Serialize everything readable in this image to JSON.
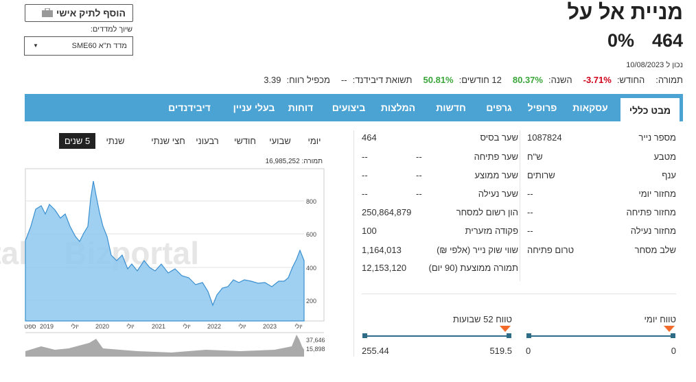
{
  "header": {
    "title": "מניית אל על",
    "price": "464",
    "change": "0%",
    "date_label": "נכון ל 10/08/2023",
    "stats_title": "תמורה:",
    "stats": [
      {
        "label": "החודש:",
        "value": "-3.71%",
        "tone": "neg"
      },
      {
        "label": "השנה:",
        "value": "80.37%",
        "tone": "pos"
      },
      {
        "label": "12 חודשים:",
        "value": "50.81%",
        "tone": "pos"
      },
      {
        "label": "תשואת דיבידנד:",
        "value": "--",
        "tone": "plain"
      },
      {
        "label": "מכפיל רווח:",
        "value": "3.39",
        "tone": "plain"
      }
    ]
  },
  "portfolio_button": "הוסף לתיק אישי",
  "index_label": "שיוך למדדים:",
  "index_dropdown": "מדד ת\"א SME60",
  "tabs": [
    "מבט כללי",
    "עסקאות",
    "פרופיל",
    "גרפים",
    "חדשות",
    "המלצות",
    "ביצועים",
    "דוחות",
    "בעלי עניין",
    "דיבידנדים"
  ],
  "info_right": [
    [
      "מספר נייר",
      "1087824"
    ],
    [
      "מטבע",
      "ש\"ח"
    ],
    [
      "ענף",
      "שרותים"
    ],
    [
      "מחזור יומי",
      "--"
    ],
    [
      "מחזור פתיחה",
      "--"
    ],
    [
      "מחזור נעילה",
      "--"
    ],
    [
      "שלב מסחר",
      "טרום פתיחה"
    ]
  ],
  "info_middle": [
    [
      "שער בסיס",
      "464"
    ],
    [
      "שער פתיחה",
      "--",
      "--"
    ],
    [
      "שער ממוצע",
      "--",
      "--"
    ],
    [
      "שער נעילה",
      "--",
      "--"
    ],
    [
      "הון רשום למסחר",
      "250,864,879"
    ],
    [
      "פקודה מזערית",
      "100"
    ],
    [
      "שווי שוק נייר (אלפי ₪)",
      "1,164,013"
    ],
    [
      "תמורה ממוצעת (90 יום)",
      "12,153,120"
    ]
  ],
  "ranges": [
    {
      "label": "טווח יומי",
      "high": "0",
      "low": "0"
    },
    {
      "label": "טווח 52 שבועות",
      "high": "519.5",
      "low": "255.44"
    }
  ],
  "chart": {
    "periods": [
      "יומי",
      "שבועי",
      "חודשי",
      "רבעוני",
      "חצי שנתי",
      "שנתי",
      "5 שנים"
    ],
    "volume_label": "תמורה: 16,985,252",
    "y_labels": [
      "800",
      "600",
      "400",
      "200"
    ],
    "x_labels": [
      "ספט",
      "2019",
      "יולי",
      "2020",
      "יולי",
      "2021",
      "יולי",
      "2022",
      "יולי",
      "2023",
      "יולי"
    ],
    "volume_labels": [
      "37,646",
      "15,898"
    ],
    "watermark": "Bizportal"
  }
}
